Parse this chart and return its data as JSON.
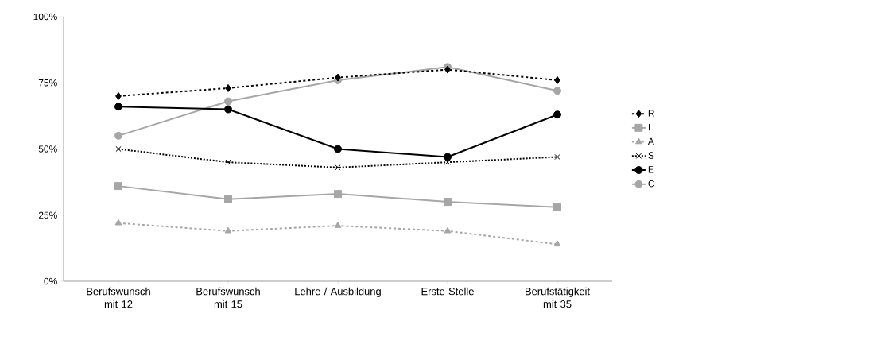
{
  "chart_data": {
    "type": "line",
    "categories": [
      "Berufswunsch mit 12",
      "Berufswunsch mit 15",
      "Lehre / Ausbildung",
      "Erste Stelle",
      "Berufstätigkeit mit 35"
    ],
    "series": [
      {
        "name": "R",
        "color": "#000000",
        "marker": "diamond",
        "line_style": "dashed",
        "values": [
          70,
          73,
          77,
          80,
          76
        ]
      },
      {
        "name": "I",
        "color": "#a6a6a6",
        "marker": "square",
        "line_style": "solid",
        "values": [
          36,
          31,
          33,
          30,
          28
        ]
      },
      {
        "name": "A",
        "color": "#a6a6a6",
        "marker": "triangle",
        "line_style": "dashed",
        "values": [
          22,
          19,
          21,
          19,
          14
        ]
      },
      {
        "name": "S",
        "color": "#000000",
        "marker": "cross",
        "line_style": "dotted",
        "values": [
          50,
          45,
          43,
          45,
          47
        ]
      },
      {
        "name": "E",
        "color": "#000000",
        "marker": "circle",
        "line_style": "solid",
        "values": [
          66,
          65,
          50,
          47,
          63
        ]
      },
      {
        "name": "C",
        "color": "#a6a6a6",
        "marker": "circle",
        "line_style": "solid",
        "values": [
          55,
          68,
          76,
          81,
          72
        ]
      }
    ],
    "ylim": [
      0,
      100
    ],
    "yticks": [
      {
        "value": 0,
        "label": "0%"
      },
      {
        "value": 25,
        "label": "25%"
      },
      {
        "value": 50,
        "label": "50%"
      },
      {
        "value": 75,
        "label": "75%"
      },
      {
        "value": 100,
        "label": "100%"
      }
    ],
    "grid": false,
    "legend": "right"
  }
}
